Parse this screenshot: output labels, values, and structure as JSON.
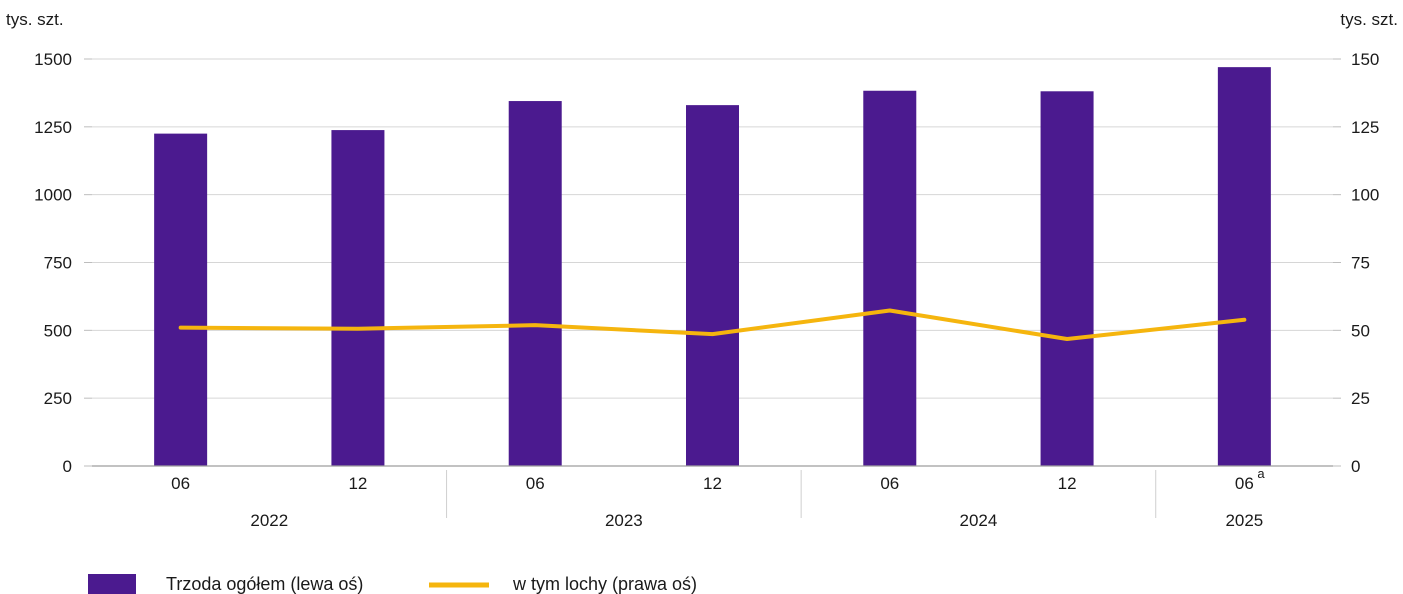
{
  "chart_data": {
    "type": "bar",
    "left_axis_unit": "tys. szt.",
    "right_axis_unit": "tys. szt.",
    "categories": [
      "06",
      "12",
      "06",
      "12",
      "06",
      "12",
      "06"
    ],
    "category_notes": [
      "",
      "",
      "",
      "",
      "",
      "",
      "a"
    ],
    "years": [
      {
        "label": "2022",
        "span": [
          0,
          1
        ]
      },
      {
        "label": "2023",
        "span": [
          2,
          3
        ]
      },
      {
        "label": "2024",
        "span": [
          4,
          5
        ]
      },
      {
        "label": "2025",
        "span": [
          6,
          6
        ]
      }
    ],
    "left_axis": {
      "min": 0,
      "max": 1500,
      "ticks": [
        "0",
        "250",
        "500",
        "750",
        "1000",
        "1250",
        "1500"
      ]
    },
    "right_axis": {
      "min": 0,
      "max": 150,
      "ticks": [
        "0",
        "25",
        "50",
        "75",
        "100",
        "125",
        "150"
      ]
    },
    "grid": true,
    "legend_position": "bottom-left",
    "series": [
      {
        "name": "Trzoda ogółem (lewa oś)",
        "kind": "bar",
        "axis": "left",
        "color": "#4b1a8f",
        "values": [
          1225,
          1238,
          1345,
          1330,
          1383,
          1381,
          1470
        ]
      },
      {
        "name": "w tym lochy (prawa oś)",
        "kind": "line",
        "axis": "right",
        "color": "#f5b50e",
        "values": [
          51.0,
          50.6,
          51.9,
          48.6,
          57.3,
          46.8,
          53.9
        ]
      }
    ]
  }
}
